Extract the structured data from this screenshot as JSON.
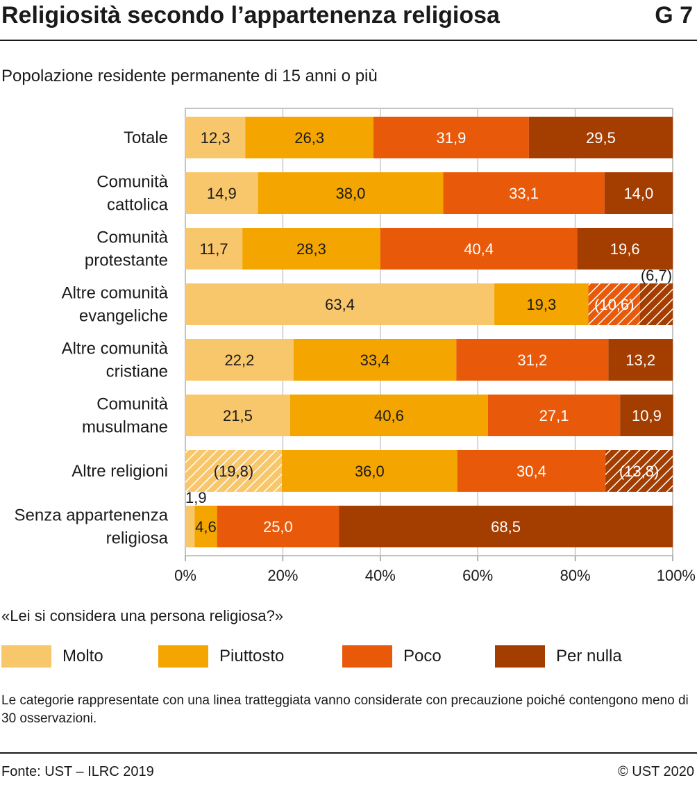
{
  "header": {
    "title": "Religiosità secondo l’appartenenza religiosa",
    "figure_number": "G 7"
  },
  "subtitle": "Popolazione residente permanente di 15 anni o più",
  "question": "«Lei si considera una persona religiosa?»",
  "note": "Le categorie rappresentate con una linea tratteggiata vanno considerate con precauzione poiché contengono meno di 30 osservazioni.",
  "footer": {
    "source": "Fonte: UST – ILRC 2019",
    "copyright": "© UST 2020"
  },
  "chart_data": {
    "type": "bar",
    "orientation": "horizontal",
    "stacked": true,
    "xlim": [
      0,
      100
    ],
    "xticks": [
      "0%",
      "20%",
      "40%",
      "60%",
      "80%",
      "100%"
    ],
    "grid": true,
    "legend_position": "bottom",
    "categories": [
      [
        "Totale"
      ],
      [
        "Comunità",
        "cattolica"
      ],
      [
        "Comunità",
        "protestante"
      ],
      [
        "Altre comunità",
        "evangeliche"
      ],
      [
        "Altre comunità",
        "cristiane"
      ],
      [
        "Comunità",
        "musulmane"
      ],
      [
        "Altre religioni"
      ],
      [
        "Senza appartenenza",
        "religiosa"
      ]
    ],
    "series": [
      {
        "name": "Molto",
        "color": "#f9c76b",
        "values": [
          12.3,
          14.9,
          11.7,
          63.4,
          22.2,
          21.5,
          19.8,
          1.9
        ],
        "labels": [
          "12,3",
          "14,9",
          "11,7",
          "63,4",
          "22,2",
          "21,5",
          "(19,8)",
          "1,9"
        ],
        "hatched": [
          false,
          false,
          false,
          false,
          false,
          false,
          true,
          false
        ]
      },
      {
        "name": "Piuttosto",
        "color": "#f4a500",
        "values": [
          26.3,
          38.0,
          28.3,
          19.3,
          33.4,
          40.6,
          36.0,
          4.6
        ],
        "labels": [
          "26,3",
          "38,0",
          "28,3",
          "19,3",
          "33,4",
          "40,6",
          "36,0",
          "4,6"
        ],
        "hatched": [
          false,
          false,
          false,
          false,
          false,
          false,
          false,
          false
        ]
      },
      {
        "name": "Poco",
        "color": "#e85a0a",
        "values": [
          31.9,
          33.1,
          40.4,
          10.6,
          31.2,
          27.1,
          30.4,
          25.0
        ],
        "labels": [
          "31,9",
          "33,1",
          "40,4",
          "(10,6)",
          "31,2",
          "27,1",
          "30,4",
          "25,0"
        ],
        "hatched": [
          false,
          false,
          false,
          true,
          false,
          false,
          false,
          false
        ]
      },
      {
        "name": "Per nulla",
        "color": "#a43d00",
        "values": [
          29.5,
          14.0,
          19.6,
          6.7,
          13.2,
          10.9,
          13.8,
          68.5
        ],
        "labels": [
          "29,5",
          "14,0",
          "19,6",
          "(6,7)",
          "13,2",
          "10,9",
          "(13,8)",
          "68,5"
        ],
        "hatched": [
          false,
          false,
          false,
          true,
          false,
          false,
          true,
          false
        ]
      }
    ]
  }
}
